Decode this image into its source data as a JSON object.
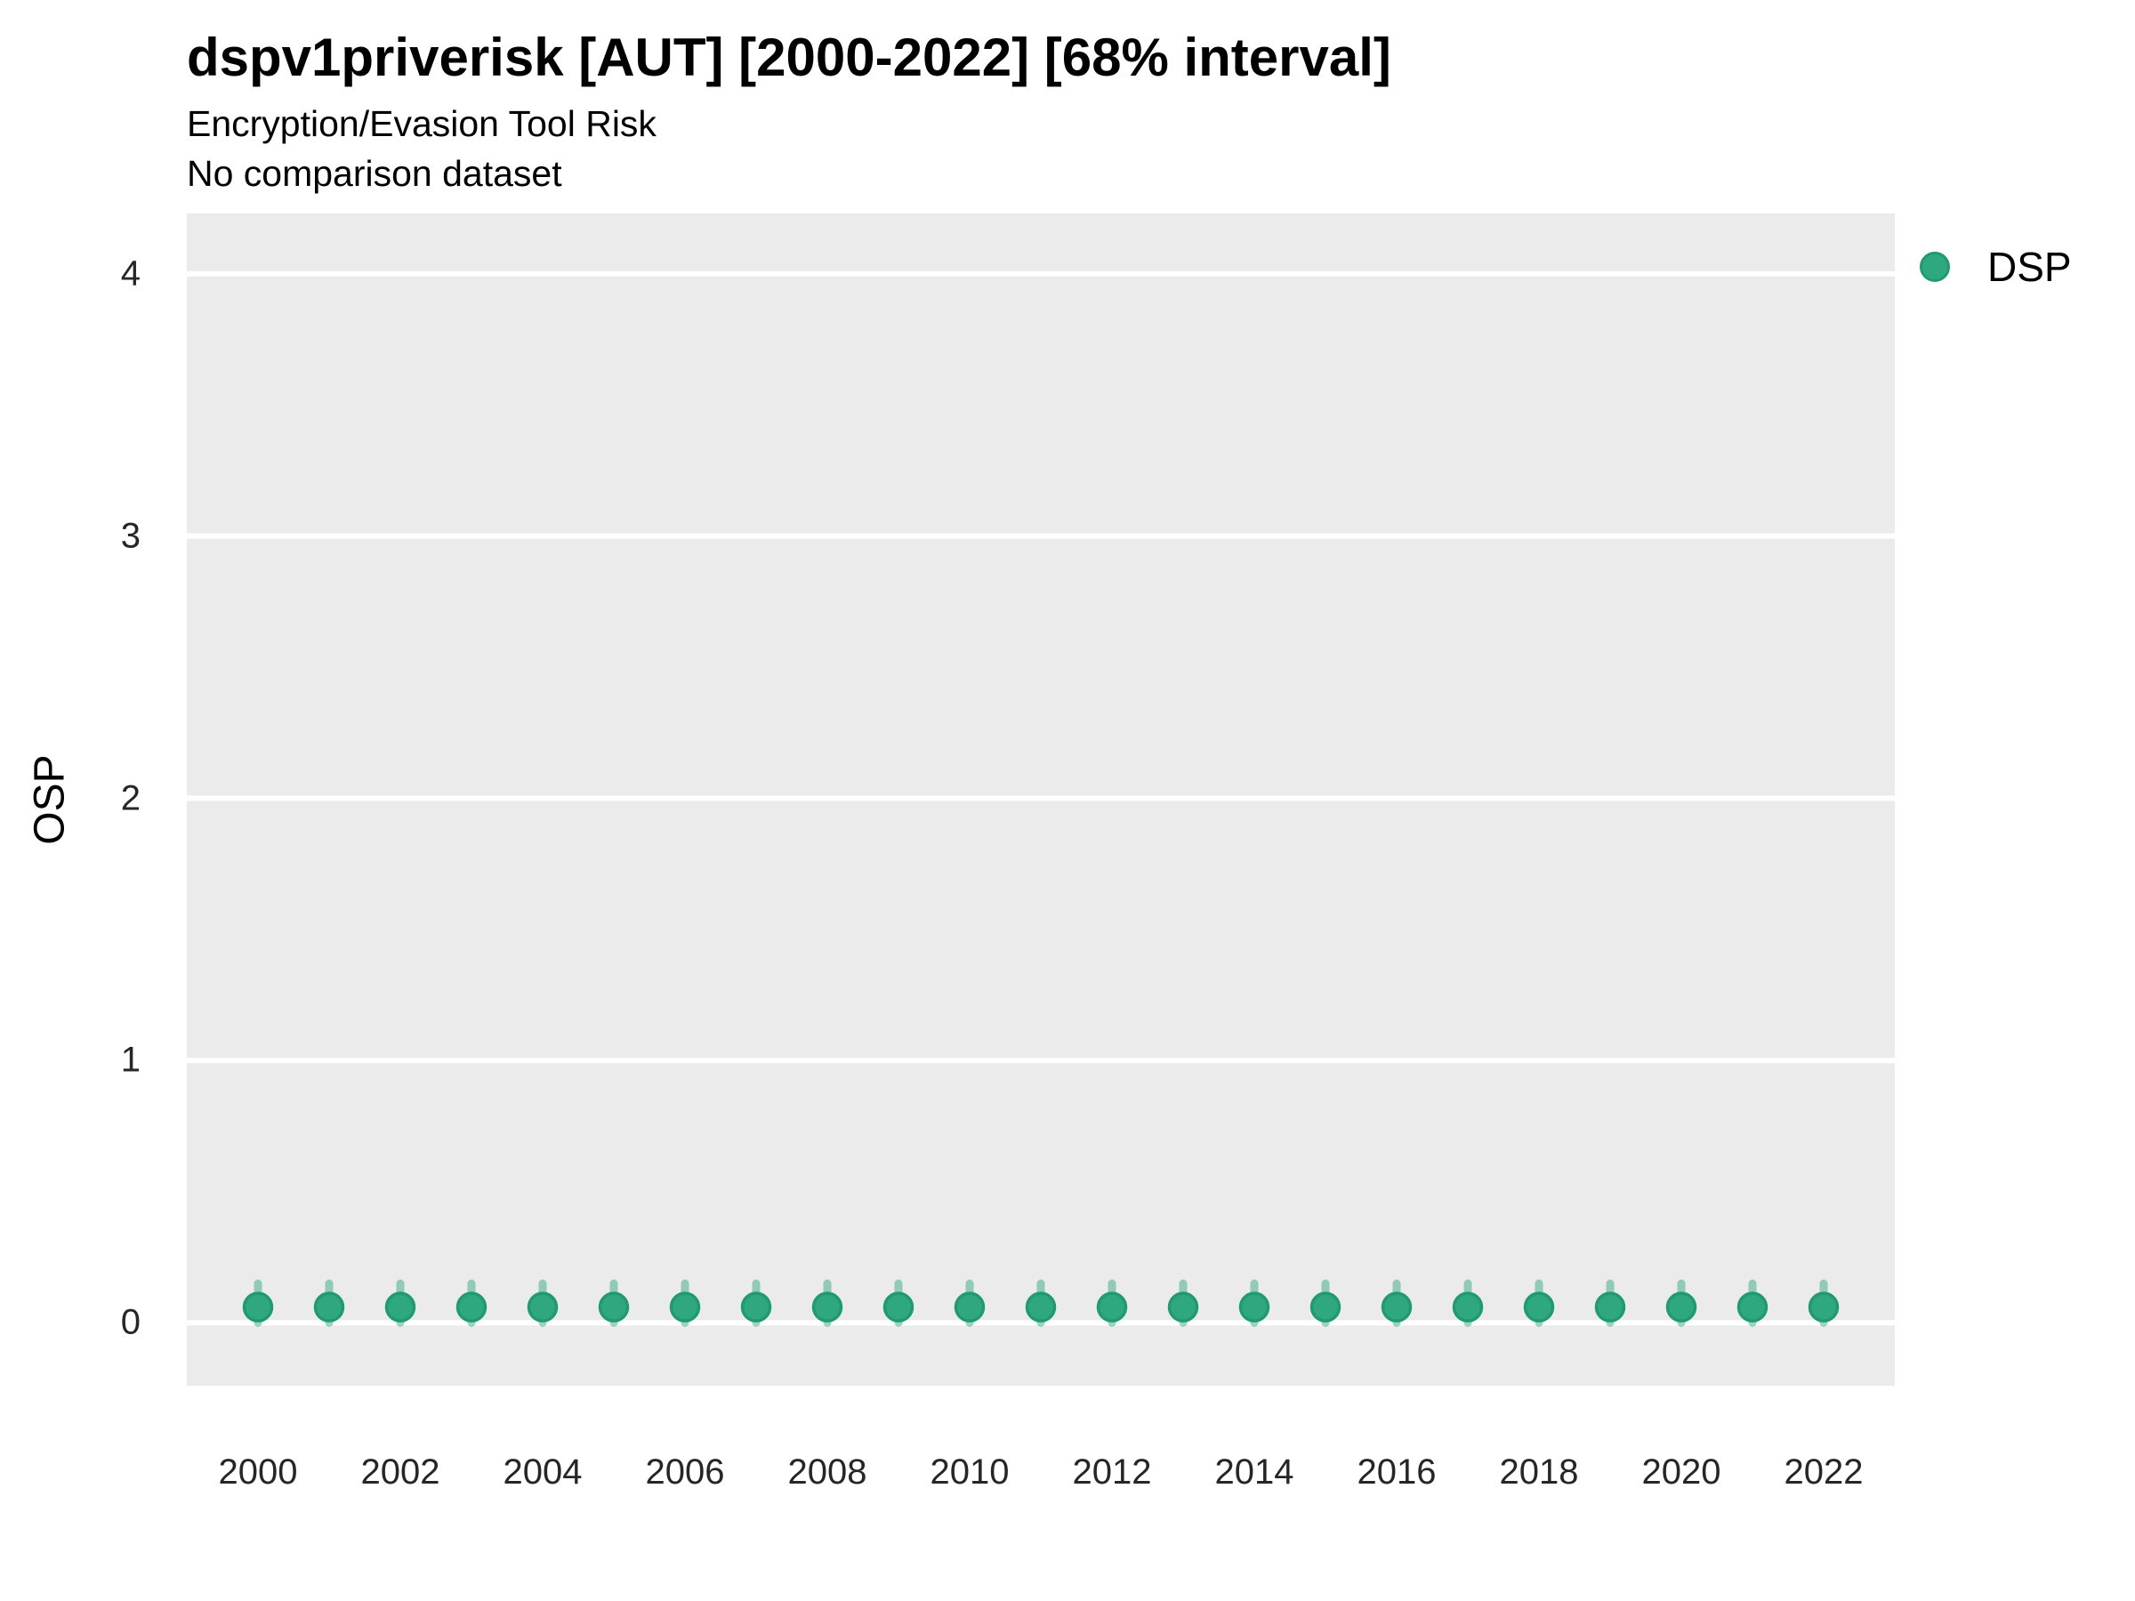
{
  "colors": {
    "panel_background": "#ebebeb",
    "gridline": "#ffffff",
    "title_text": "#000000",
    "tick_text": "#262626",
    "point_fill": "#2fa87f",
    "point_stroke": "#1f9a72"
  },
  "chart_data": {
    "type": "scatter",
    "title": "dspv1priverisk [AUT] [2000-2022] [68% interval]",
    "subtitle": "Encryption/Evasion Tool Risk",
    "caption": "No comparison dataset",
    "xlabel": "",
    "ylabel": "OSP",
    "interval_level": "68%",
    "grid": "horizontal-major-only",
    "x_ticks": [
      2000,
      2002,
      2004,
      2006,
      2008,
      2010,
      2012,
      2014,
      2016,
      2018,
      2020,
      2022
    ],
    "y_ticks": [
      0,
      1,
      2,
      3,
      4
    ],
    "x_range": [
      1999.0,
      2023.0
    ],
    "y_range": [
      -0.24,
      4.23
    ],
    "legend": {
      "position": "right-top",
      "entries": [
        {
          "label": "DSP",
          "color": "#2fa87f",
          "stroke": "#1f9a72"
        }
      ]
    },
    "series": [
      {
        "name": "DSP",
        "color": "#2fa87f",
        "stroke": "#1f9a72",
        "interval_opacity": 0.48,
        "points": [
          {
            "x": 2000,
            "y": 0.06,
            "lo": 0.0,
            "hi": 0.15
          },
          {
            "x": 2001,
            "y": 0.06,
            "lo": 0.0,
            "hi": 0.15
          },
          {
            "x": 2002,
            "y": 0.06,
            "lo": 0.0,
            "hi": 0.15
          },
          {
            "x": 2003,
            "y": 0.06,
            "lo": 0.0,
            "hi": 0.15
          },
          {
            "x": 2004,
            "y": 0.06,
            "lo": 0.0,
            "hi": 0.15
          },
          {
            "x": 2005,
            "y": 0.06,
            "lo": 0.0,
            "hi": 0.15
          },
          {
            "x": 2006,
            "y": 0.06,
            "lo": 0.0,
            "hi": 0.15
          },
          {
            "x": 2007,
            "y": 0.06,
            "lo": 0.0,
            "hi": 0.15
          },
          {
            "x": 2008,
            "y": 0.06,
            "lo": 0.0,
            "hi": 0.15
          },
          {
            "x": 2009,
            "y": 0.06,
            "lo": 0.0,
            "hi": 0.15
          },
          {
            "x": 2010,
            "y": 0.06,
            "lo": 0.0,
            "hi": 0.15
          },
          {
            "x": 2011,
            "y": 0.06,
            "lo": 0.0,
            "hi": 0.15
          },
          {
            "x": 2012,
            "y": 0.06,
            "lo": 0.0,
            "hi": 0.15
          },
          {
            "x": 2013,
            "y": 0.06,
            "lo": 0.0,
            "hi": 0.15
          },
          {
            "x": 2014,
            "y": 0.06,
            "lo": 0.0,
            "hi": 0.15
          },
          {
            "x": 2015,
            "y": 0.06,
            "lo": 0.0,
            "hi": 0.15
          },
          {
            "x": 2016,
            "y": 0.06,
            "lo": 0.0,
            "hi": 0.15
          },
          {
            "x": 2017,
            "y": 0.06,
            "lo": 0.0,
            "hi": 0.15
          },
          {
            "x": 2018,
            "y": 0.06,
            "lo": 0.0,
            "hi": 0.15
          },
          {
            "x": 2019,
            "y": 0.06,
            "lo": 0.0,
            "hi": 0.15
          },
          {
            "x": 2020,
            "y": 0.06,
            "lo": 0.0,
            "hi": 0.15
          },
          {
            "x": 2021,
            "y": 0.06,
            "lo": 0.0,
            "hi": 0.15
          },
          {
            "x": 2022,
            "y": 0.06,
            "lo": 0.0,
            "hi": 0.15
          }
        ]
      }
    ]
  }
}
